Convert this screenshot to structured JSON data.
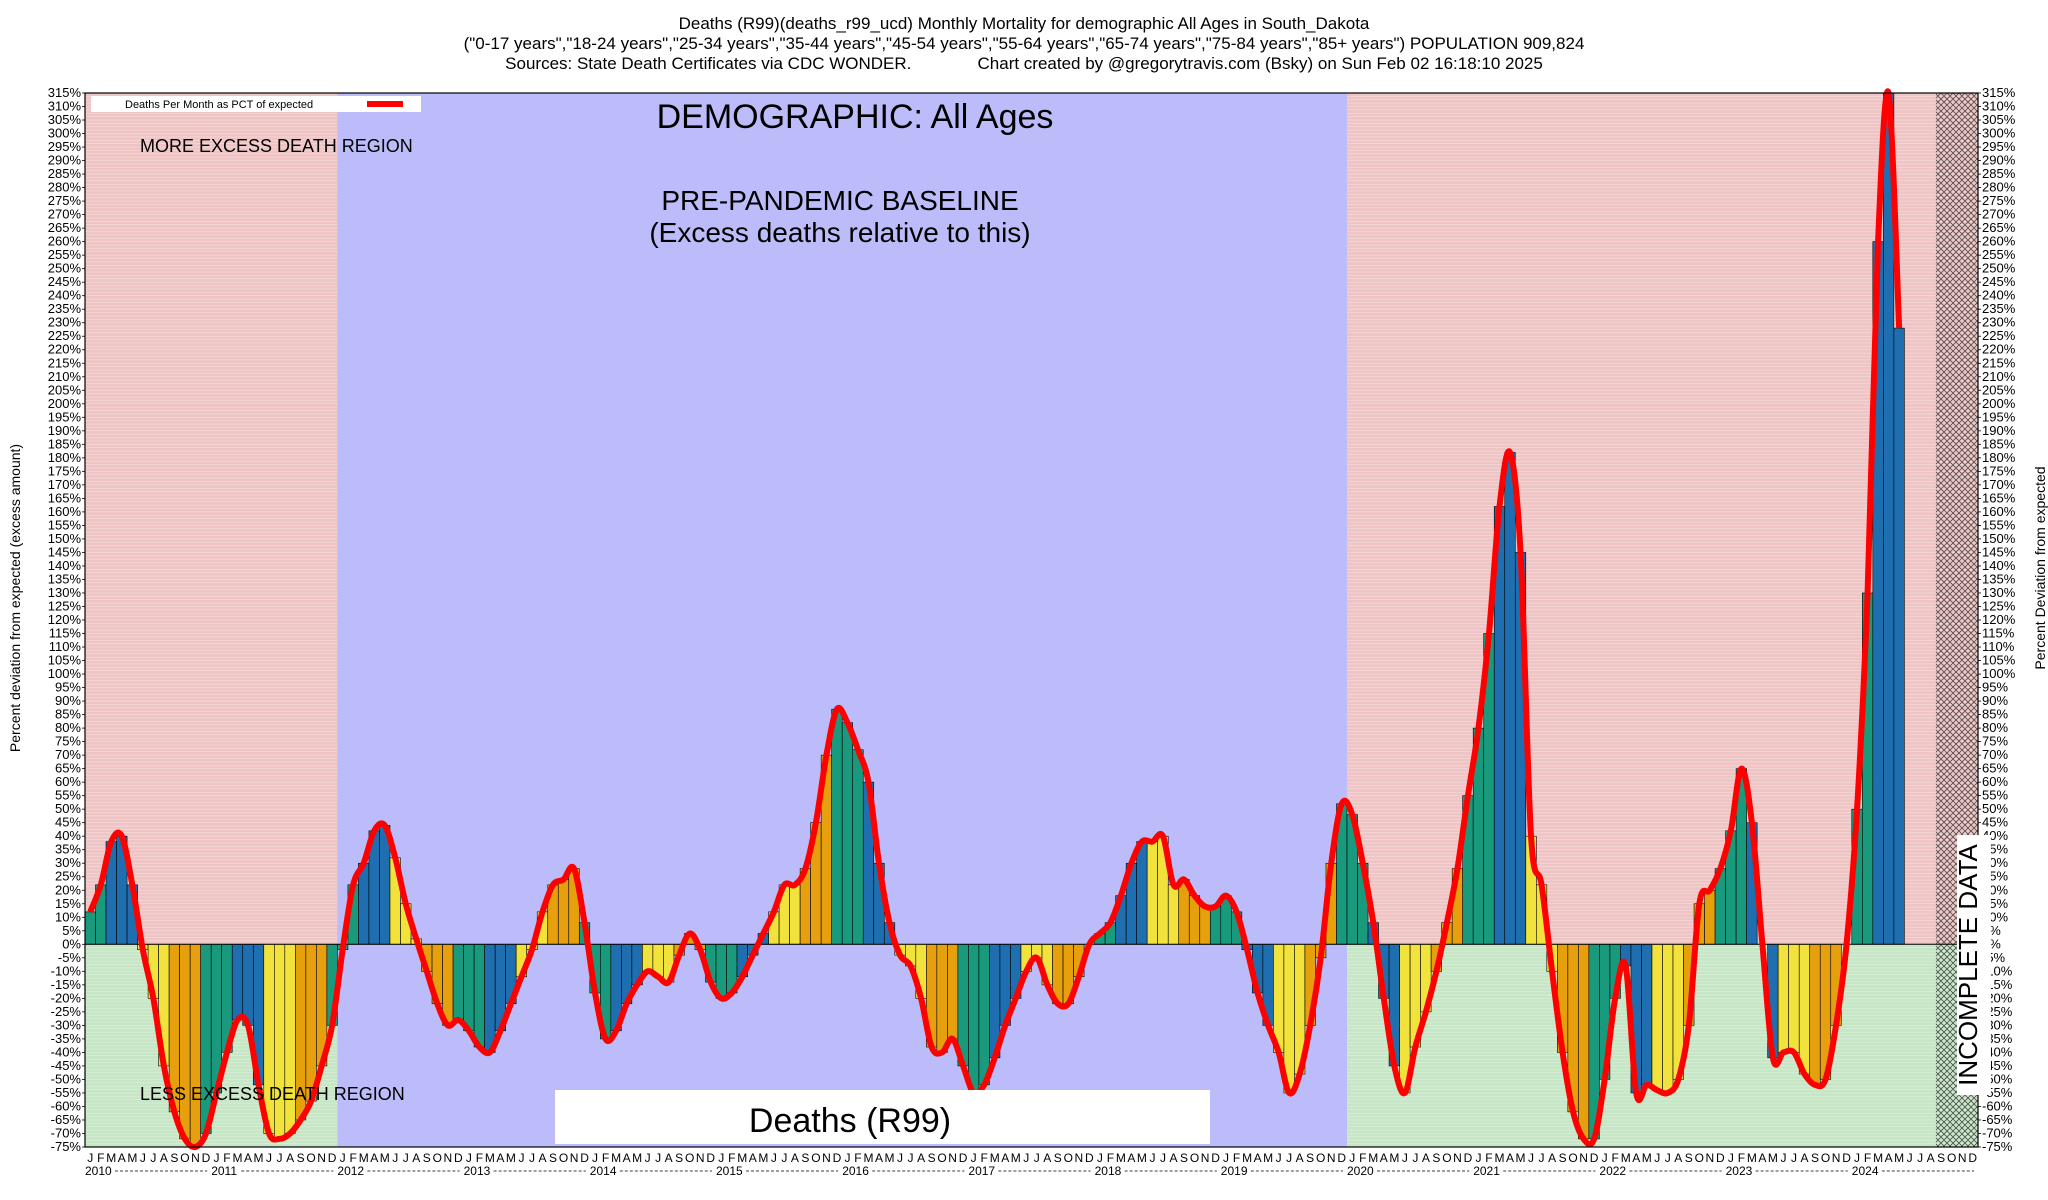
{
  "chart_data": {
    "type": "bar",
    "title": "Deaths (R99)(deaths_r99_ucd) Monthly Mortality for demographic All Ages in South_Dakota",
    "subtitle_lines": [
      "(\"0-17 years\",\"18-24 years\",\"25-34 years\",\"35-44 years\",\"45-54 years\",\"55-64 years\",\"65-74 years\",\"75-84 years\",\"85+ years\") POPULATION 909,824",
      "Sources: State Death Certificates via CDC WONDER.              Chart created by @gregorytravis.com (Bsky) on Sun Feb 02 16:18:10 2025"
    ],
    "ylabel": "Percent deviation from expected (excess amount)",
    "ylabel_right": "Percent Deviation from expected",
    "ylim": [
      -75,
      315
    ],
    "ytick_step": 5,
    "legend": {
      "label": "Deaths Per Month as PCT of expected",
      "position": "top-left"
    },
    "annotations": {
      "demographic": "DEMOGRAPHIC: All Ages",
      "baseline_line1": "PRE-PANDEMIC BASELINE",
      "baseline_line2": "(Excess deaths relative to this)",
      "more_region": "MORE EXCESS DEATH REGION",
      "less_region": "LESS EXCESS DEATH REGION",
      "bottom_label": "Deaths (R99)",
      "incomplete": "INCOMPLETE DATA"
    },
    "month_letters": [
      "J",
      "F",
      "M",
      "A",
      "M",
      "J",
      "J",
      "A",
      "S",
      "O",
      "N",
      "D"
    ],
    "years": [
      "2010",
      "2011",
      "2012",
      "2013",
      "2014",
      "2015",
      "2016",
      "2017",
      "2018",
      "2019",
      "2020",
      "2021",
      "2022",
      "2023",
      "2024"
    ],
    "baseline_period": [
      "2012-01",
      "2019-12"
    ],
    "incomplete_from": "2024-09",
    "colors": {
      "more_region": "#efc4c4",
      "less_region": "#c6e6c6",
      "baseline": "#bcbcfa",
      "line": "#ff0000",
      "bar_blue": "#1f6fb0",
      "bar_green": "#1a9a7c",
      "bar_yellow": "#f2e33c",
      "bar_orange": "#e6a00e"
    },
    "series": [
      {
        "name": "Deaths Per Month as PCT of expected",
        "start": "2010-01",
        "values": [
          12,
          22,
          38,
          40,
          22,
          -2,
          -20,
          -45,
          -62,
          -72,
          -75,
          -70,
          -55,
          -40,
          -28,
          -30,
          -52,
          -70,
          -72,
          -70,
          -65,
          -58,
          -45,
          -30,
          -2,
          22,
          30,
          42,
          44,
          32,
          15,
          2,
          -10,
          -22,
          -30,
          -28,
          -32,
          -38,
          -40,
          -32,
          -22,
          -12,
          -2,
          12,
          22,
          24,
          28,
          8,
          -18,
          -35,
          -32,
          -22,
          -15,
          -10,
          -12,
          -14,
          -4,
          4,
          -2,
          -14,
          -20,
          -18,
          -12,
          -4,
          4,
          12,
          22,
          22,
          28,
          45,
          70,
          87,
          82,
          72,
          60,
          30,
          8,
          -4,
          -8,
          -20,
          -38,
          -40,
          -35,
          -45,
          -55,
          -52,
          -42,
          -30,
          -20,
          -10,
          -5,
          -15,
          -22,
          -22,
          -12,
          0,
          4,
          8,
          18,
          30,
          38,
          38,
          40,
          22,
          24,
          18,
          14,
          14,
          18,
          12,
          -2,
          -18,
          -30,
          -40,
          -55,
          -48,
          -30,
          -5,
          30,
          52,
          48,
          30,
          8,
          -20,
          -45,
          -55,
          -38,
          -25,
          -10,
          8,
          28,
          55,
          80,
          115,
          162,
          182,
          145,
          40,
          22,
          -10,
          -40,
          -62,
          -72,
          -72,
          -50,
          -20,
          -8,
          -55,
          -52,
          -54,
          -55,
          -50,
          -30,
          15,
          20,
          28,
          42,
          65,
          45,
          0,
          -42,
          -40,
          -40,
          -48,
          -52,
          -50,
          -30,
          0,
          50,
          130,
          260,
          315,
          228
        ]
      }
    ]
  }
}
